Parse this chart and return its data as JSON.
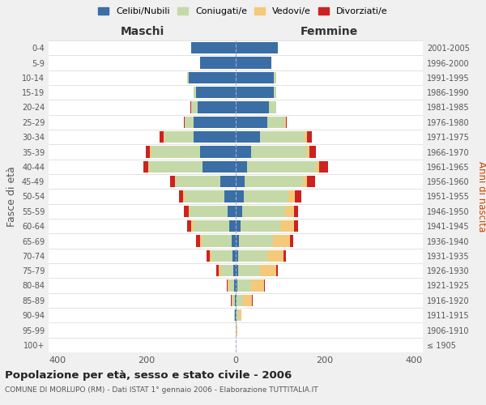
{
  "age_groups": [
    "100+",
    "95-99",
    "90-94",
    "85-89",
    "80-84",
    "75-79",
    "70-74",
    "65-69",
    "60-64",
    "55-59",
    "50-54",
    "45-49",
    "40-44",
    "35-39",
    "30-34",
    "25-29",
    "20-24",
    "15-19",
    "10-14",
    "5-9",
    "0-4"
  ],
  "birth_years": [
    "≤ 1905",
    "1906-1910",
    "1911-1915",
    "1916-1920",
    "1921-1925",
    "1926-1930",
    "1931-1935",
    "1936-1940",
    "1941-1945",
    "1946-1950",
    "1951-1955",
    "1956-1960",
    "1961-1965",
    "1966-1970",
    "1971-1975",
    "1976-1980",
    "1981-1985",
    "1986-1990",
    "1991-1995",
    "1996-2000",
    "2001-2005"
  ],
  "colors": {
    "celibe": "#3a6ea5",
    "coniugato": "#c5d9a8",
    "vedovo": "#f5c97a",
    "divorziato": "#cc2222"
  },
  "maschi": {
    "celibe": [
      0,
      0,
      1,
      2,
      3,
      5,
      8,
      10,
      15,
      18,
      25,
      35,
      75,
      80,
      95,
      95,
      85,
      90,
      105,
      80,
      100
    ],
    "coniugato": [
      0,
      0,
      2,
      5,
      12,
      28,
      45,
      65,
      80,
      85,
      90,
      100,
      120,
      110,
      65,
      20,
      15,
      5,
      5,
      0,
      0
    ],
    "vedovo": [
      0,
      0,
      1,
      2,
      3,
      5,
      5,
      5,
      5,
      3,
      3,
      2,
      2,
      2,
      2,
      0,
      0,
      0,
      0,
      0,
      0
    ],
    "divorziato": [
      0,
      0,
      0,
      2,
      2,
      5,
      8,
      10,
      10,
      10,
      10,
      10,
      10,
      10,
      8,
      2,
      2,
      0,
      0,
      0,
      0
    ]
  },
  "femmine": {
    "nubile": [
      0,
      0,
      2,
      2,
      4,
      5,
      5,
      8,
      10,
      15,
      18,
      20,
      25,
      35,
      55,
      70,
      75,
      85,
      85,
      80,
      95
    ],
    "coniugata": [
      0,
      2,
      5,
      15,
      30,
      50,
      65,
      75,
      90,
      95,
      100,
      130,
      155,
      125,
      100,
      40,
      15,
      5,
      5,
      0,
      0
    ],
    "vedova": [
      0,
      2,
      5,
      20,
      30,
      35,
      38,
      38,
      30,
      20,
      15,
      10,
      8,
      5,
      5,
      2,
      0,
      0,
      0,
      0,
      0
    ],
    "divorziata": [
      0,
      0,
      0,
      2,
      2,
      5,
      5,
      8,
      10,
      10,
      15,
      18,
      20,
      15,
      10,
      2,
      0,
      0,
      0,
      0,
      0
    ]
  },
  "title": "Popolazione per età, sesso e stato civile - 2006",
  "subtitle": "COMUNE DI MORLUPO (RM) - Dati ISTAT 1° gennaio 2006 - Elaborazione TUTTITALIA.IT",
  "ylabel_left": "Fasce di età",
  "ylabel_right": "Anni di nascita",
  "xlabel_left": "Maschi",
  "xlabel_right": "Femmine",
  "xlim": 420,
  "legend_labels": [
    "Celibi/Nubili",
    "Coniugati/e",
    "Vedovi/e",
    "Divorziati/e"
  ],
  "bg_color": "#f0f0f0",
  "plot_bg": "#ffffff"
}
